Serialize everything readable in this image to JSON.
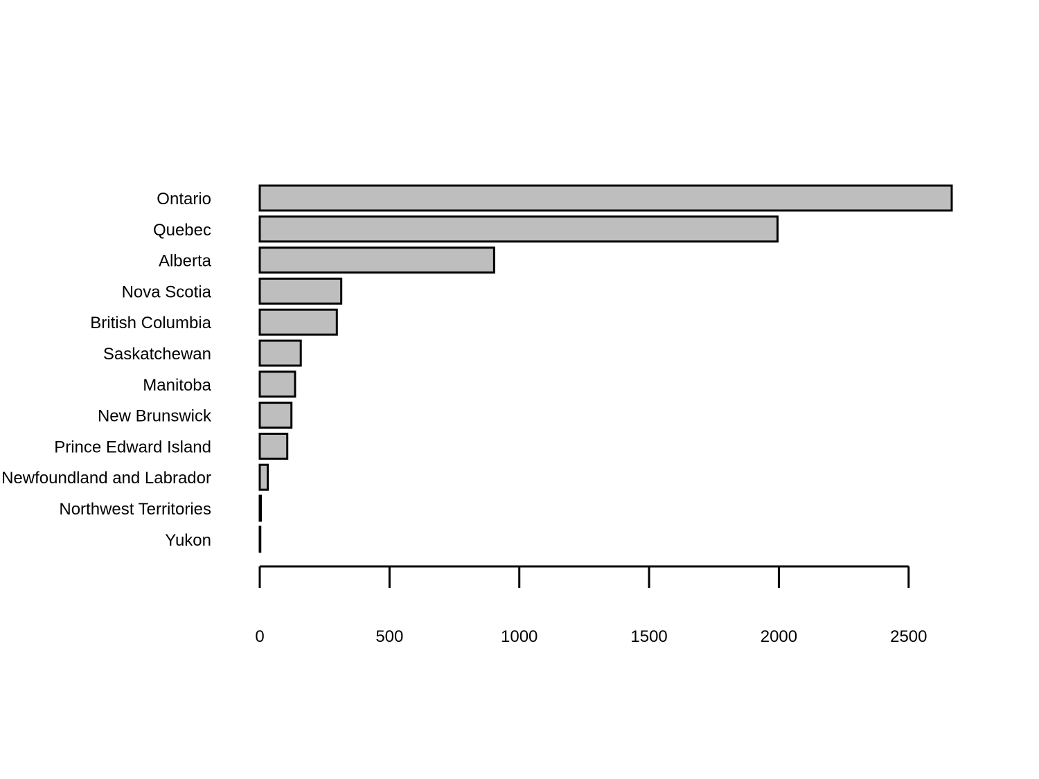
{
  "chart_data": {
    "type": "bar",
    "orientation": "horizontal",
    "title": "",
    "xlabel": "",
    "ylabel": "",
    "categories": [
      "Ontario",
      "Quebec",
      "Alberta",
      "Nova Scotia",
      "British Columbia",
      "Saskatchewan",
      "Manitoba",
      "New Brunswick",
      "Prince Edward Island",
      "Newfoundland and Labrador",
      "Northwest Territories",
      "Yukon"
    ],
    "values": [
      2666,
      1995,
      903,
      314,
      297,
      158,
      136,
      122,
      106,
      31,
      4,
      2
    ],
    "xlim": [
      0,
      2666
    ],
    "xticks": [
      0,
      500,
      1000,
      1500,
      2000,
      2500
    ],
    "grid": false,
    "legend": "none",
    "colors": {
      "bar_fill": "#bebebe",
      "bar_stroke": "#000000"
    }
  }
}
